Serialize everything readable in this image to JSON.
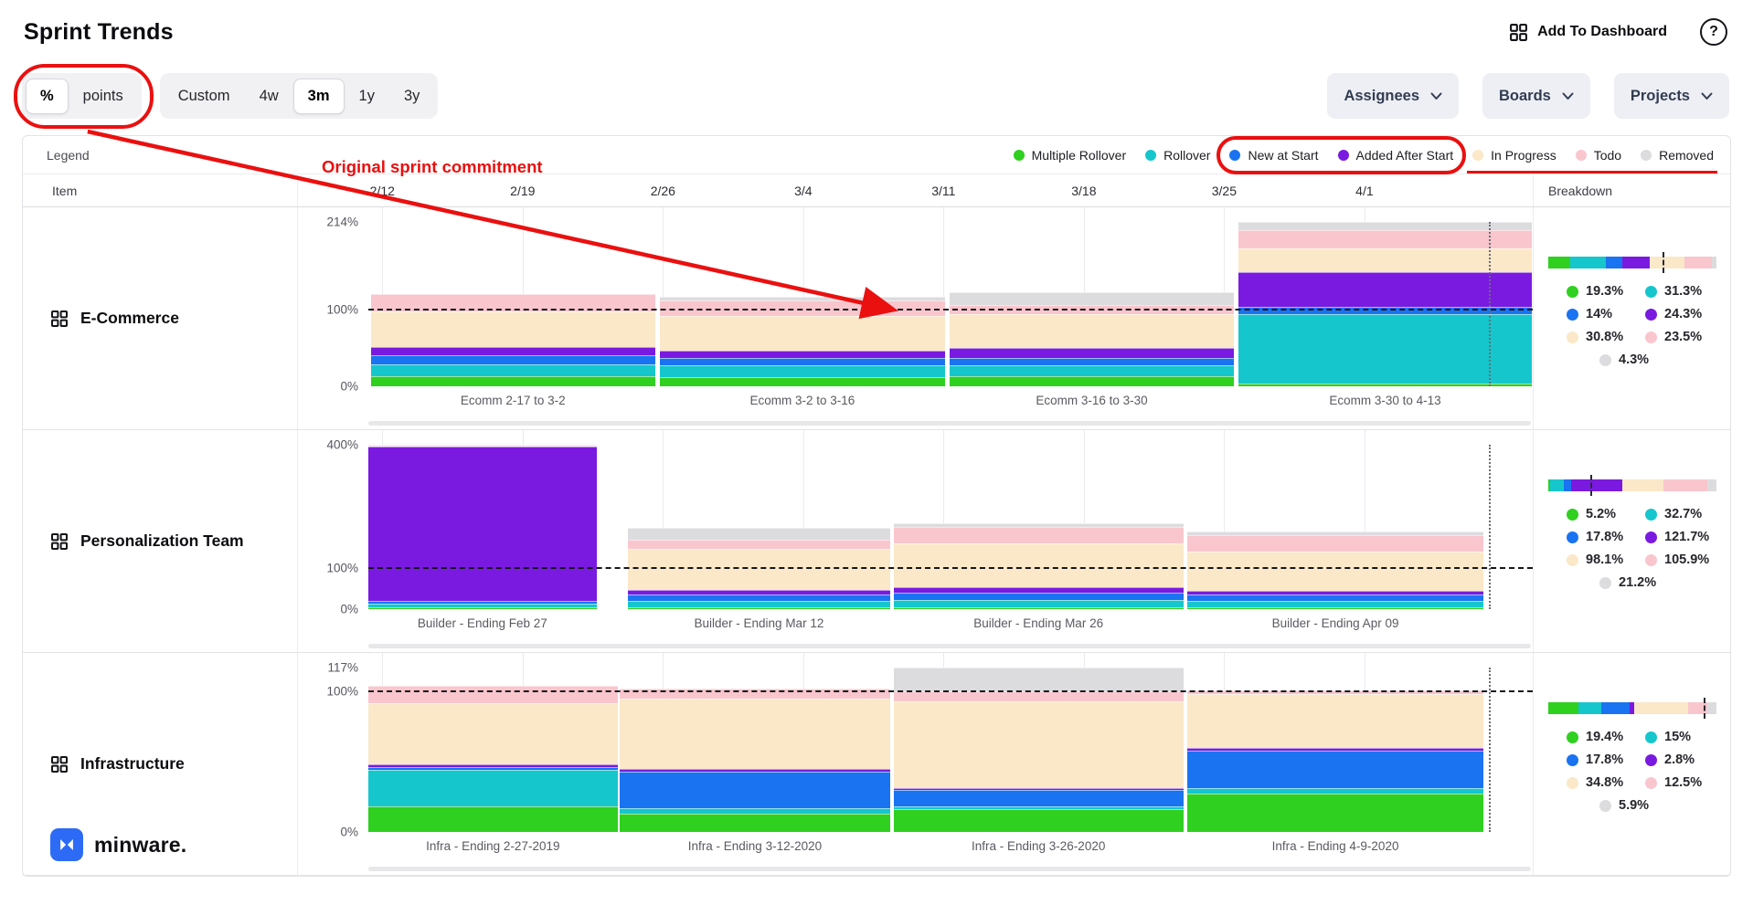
{
  "header": {
    "title": "Sprint Trends",
    "add_to_dashboard_label": "Add To Dashboard",
    "help_label": "?"
  },
  "toolbar": {
    "unit_toggle": {
      "options": [
        "%",
        "points"
      ],
      "selected": "%"
    },
    "range": {
      "options": [
        "Custom",
        "4w",
        "3m",
        "1y",
        "3y"
      ],
      "selected": "3m"
    },
    "filters": [
      {
        "label": "Assignees"
      },
      {
        "label": "Boards"
      },
      {
        "label": "Projects"
      }
    ]
  },
  "legend": {
    "title": "Legend",
    "items": [
      {
        "key": "multiple_rollover",
        "label": "Multiple Rollover"
      },
      {
        "key": "rollover",
        "label": "Rollover"
      },
      {
        "key": "new_at_start",
        "label": "New at Start"
      },
      {
        "key": "added_after_start",
        "label": "Added After Start"
      },
      {
        "key": "in_progress",
        "label": "In Progress"
      },
      {
        "key": "todo",
        "label": "Todo"
      },
      {
        "key": "removed",
        "label": "Removed"
      }
    ]
  },
  "palette": {
    "multiple_rollover": "#2fd01f",
    "rollover": "#16c6cd",
    "new_at_start": "#1a73f0",
    "added_after_start": "#7a1ae0",
    "in_progress": "#fae8c8",
    "todo": "#f9c6ce",
    "removed": "#dcdcdf",
    "annotation_red": "#ea1010"
  },
  "table": {
    "item_header": "Item",
    "breakdown_header": "Breakdown"
  },
  "x_axis": {
    "ticks": [
      "2/12",
      "2/19",
      "2/26",
      "3/4",
      "3/11",
      "3/18",
      "3/25",
      "4/1"
    ]
  },
  "annotations": {
    "commitment_label": "Original sprint commitment"
  },
  "brand": {
    "name": "minware."
  },
  "chart_data": [
    {
      "type": "bar",
      "stacked": true,
      "group": "E-Commerce",
      "unit": "%",
      "ylim": [
        0,
        214
      ],
      "y_ticks": [
        "214%",
        "100%",
        "0%"
      ],
      "commitment_line": 100,
      "now_fraction": 0.962,
      "categories": [
        "Ecomm 2-17 to 3-2",
        "Ecomm 3-2 to 3-16",
        "Ecomm 3-16 to 3-30",
        "Ecomm 3-30 to 4-13"
      ],
      "bar_spans": [
        [
          0.002,
          0.2465
        ],
        [
          0.2505,
          0.495
        ],
        [
          0.499,
          0.7435
        ],
        [
          0.7475,
          0.999
        ]
      ],
      "series": [
        {
          "key": "multiple_rollover",
          "name": "Multiple Rollover",
          "values": [
            13,
            12,
            13,
            4
          ]
        },
        {
          "key": "rollover",
          "name": "Rollover",
          "values": [
            16,
            15,
            14,
            90
          ]
        },
        {
          "key": "new_at_start",
          "name": "New at Start",
          "values": [
            11,
            10,
            10,
            9
          ]
        },
        {
          "key": "added_after_start",
          "name": "Added After Start",
          "values": [
            11,
            9,
            13,
            46
          ]
        },
        {
          "key": "in_progress",
          "name": "In Progress",
          "values": [
            47,
            46,
            44,
            30
          ]
        },
        {
          "key": "todo",
          "name": "Todo",
          "values": [
            22,
            20,
            12,
            24
          ]
        },
        {
          "key": "removed",
          "name": "Removed",
          "values": [
            0,
            5,
            16,
            11
          ]
        }
      ],
      "breakdown": [
        {
          "key": "multiple_rollover",
          "value": "19.3%"
        },
        {
          "key": "rollover",
          "value": "31.3%"
        },
        {
          "key": "new_at_start",
          "value": "14%"
        },
        {
          "key": "added_after_start",
          "value": "24.3%"
        },
        {
          "key": "in_progress",
          "value": "30.8%"
        },
        {
          "key": "todo",
          "value": "23.5%"
        },
        {
          "key": "removed",
          "value": "4.3%"
        }
      ]
    },
    {
      "type": "bar",
      "stacked": true,
      "group": "Personalization Team",
      "unit": "%",
      "ylim": [
        0,
        400
      ],
      "y_ticks": [
        "400%",
        "100%",
        "0%"
      ],
      "commitment_line": 100,
      "now_fraction": 0.962,
      "categories": [
        "Builder - Ending Feb 27",
        "Builder - Ending Mar 12",
        "Builder - Ending Mar 26",
        "Builder - Ending Apr 09"
      ],
      "bar_spans": [
        [
          0.0,
          0.196
        ],
        [
          0.223,
          0.448
        ],
        [
          0.451,
          0.7
        ],
        [
          0.703,
          0.958
        ]
      ],
      "series": [
        {
          "key": "multiple_rollover",
          "name": "Multiple Rollover",
          "values": [
            4,
            4,
            5,
            5
          ]
        },
        {
          "key": "rollover",
          "name": "Rollover",
          "values": [
            10,
            16,
            18,
            15
          ]
        },
        {
          "key": "new_at_start",
          "name": "New at Start",
          "values": [
            6,
            16,
            18,
            15
          ]
        },
        {
          "key": "added_after_start",
          "name": "Added After Start",
          "values": [
            376,
            10,
            12,
            10
          ]
        },
        {
          "key": "in_progress",
          "name": "In Progress",
          "values": [
            2,
            100,
            108,
            96
          ]
        },
        {
          "key": "todo",
          "name": "Todo",
          "values": [
            2,
            24,
            38,
            40
          ]
        },
        {
          "key": "removed",
          "name": "Removed",
          "values": [
            0,
            27,
            11,
            9
          ]
        }
      ],
      "breakdown": [
        {
          "key": "multiple_rollover",
          "value": "5.2%"
        },
        {
          "key": "rollover",
          "value": "32.7%"
        },
        {
          "key": "new_at_start",
          "value": "17.8%"
        },
        {
          "key": "added_after_start",
          "value": "121.7%"
        },
        {
          "key": "in_progress",
          "value": "98.1%"
        },
        {
          "key": "todo",
          "value": "105.9%"
        },
        {
          "key": "removed",
          "value": "21.2%"
        }
      ]
    },
    {
      "type": "bar",
      "stacked": true,
      "group": "Infrastructure",
      "unit": "%",
      "ylim": [
        0,
        117
      ],
      "y_ticks": [
        "117%",
        "100%",
        "0%"
      ],
      "commitment_line": 100,
      "now_fraction": 0.962,
      "categories": [
        "Infra - Ending 2-27-2019",
        "Infra - Ending 3-12-2020",
        "Infra - Ending 3-26-2020",
        "Infra - Ending 4-9-2020"
      ],
      "bar_spans": [
        [
          0.0,
          0.214
        ],
        [
          0.216,
          0.448
        ],
        [
          0.451,
          0.7
        ],
        [
          0.703,
          0.958
        ]
      ],
      "series": [
        {
          "key": "multiple_rollover",
          "name": "Multiple Rollover",
          "values": [
            18,
            13,
            16,
            27
          ]
        },
        {
          "key": "rollover",
          "name": "Rollover",
          "values": [
            26,
            4,
            2,
            4
          ]
        },
        {
          "key": "new_at_start",
          "name": "New at Start",
          "values": [
            2,
            26,
            12,
            27
          ]
        },
        {
          "key": "added_after_start",
          "name": "Added After Start",
          "values": [
            2,
            2,
            1,
            2
          ]
        },
        {
          "key": "in_progress",
          "name": "In Progress",
          "values": [
            44,
            50,
            62,
            38
          ]
        },
        {
          "key": "todo",
          "name": "Todo",
          "values": [
            12,
            7,
            7,
            3
          ]
        },
        {
          "key": "removed",
          "name": "Removed",
          "values": [
            0,
            0,
            17,
            0
          ]
        }
      ],
      "breakdown": [
        {
          "key": "multiple_rollover",
          "value": "19.4%"
        },
        {
          "key": "rollover",
          "value": "15%"
        },
        {
          "key": "new_at_start",
          "value": "17.8%"
        },
        {
          "key": "added_after_start",
          "value": "2.8%"
        },
        {
          "key": "in_progress",
          "value": "34.8%"
        },
        {
          "key": "todo",
          "value": "12.5%"
        },
        {
          "key": "removed",
          "value": "5.9%"
        }
      ]
    }
  ]
}
